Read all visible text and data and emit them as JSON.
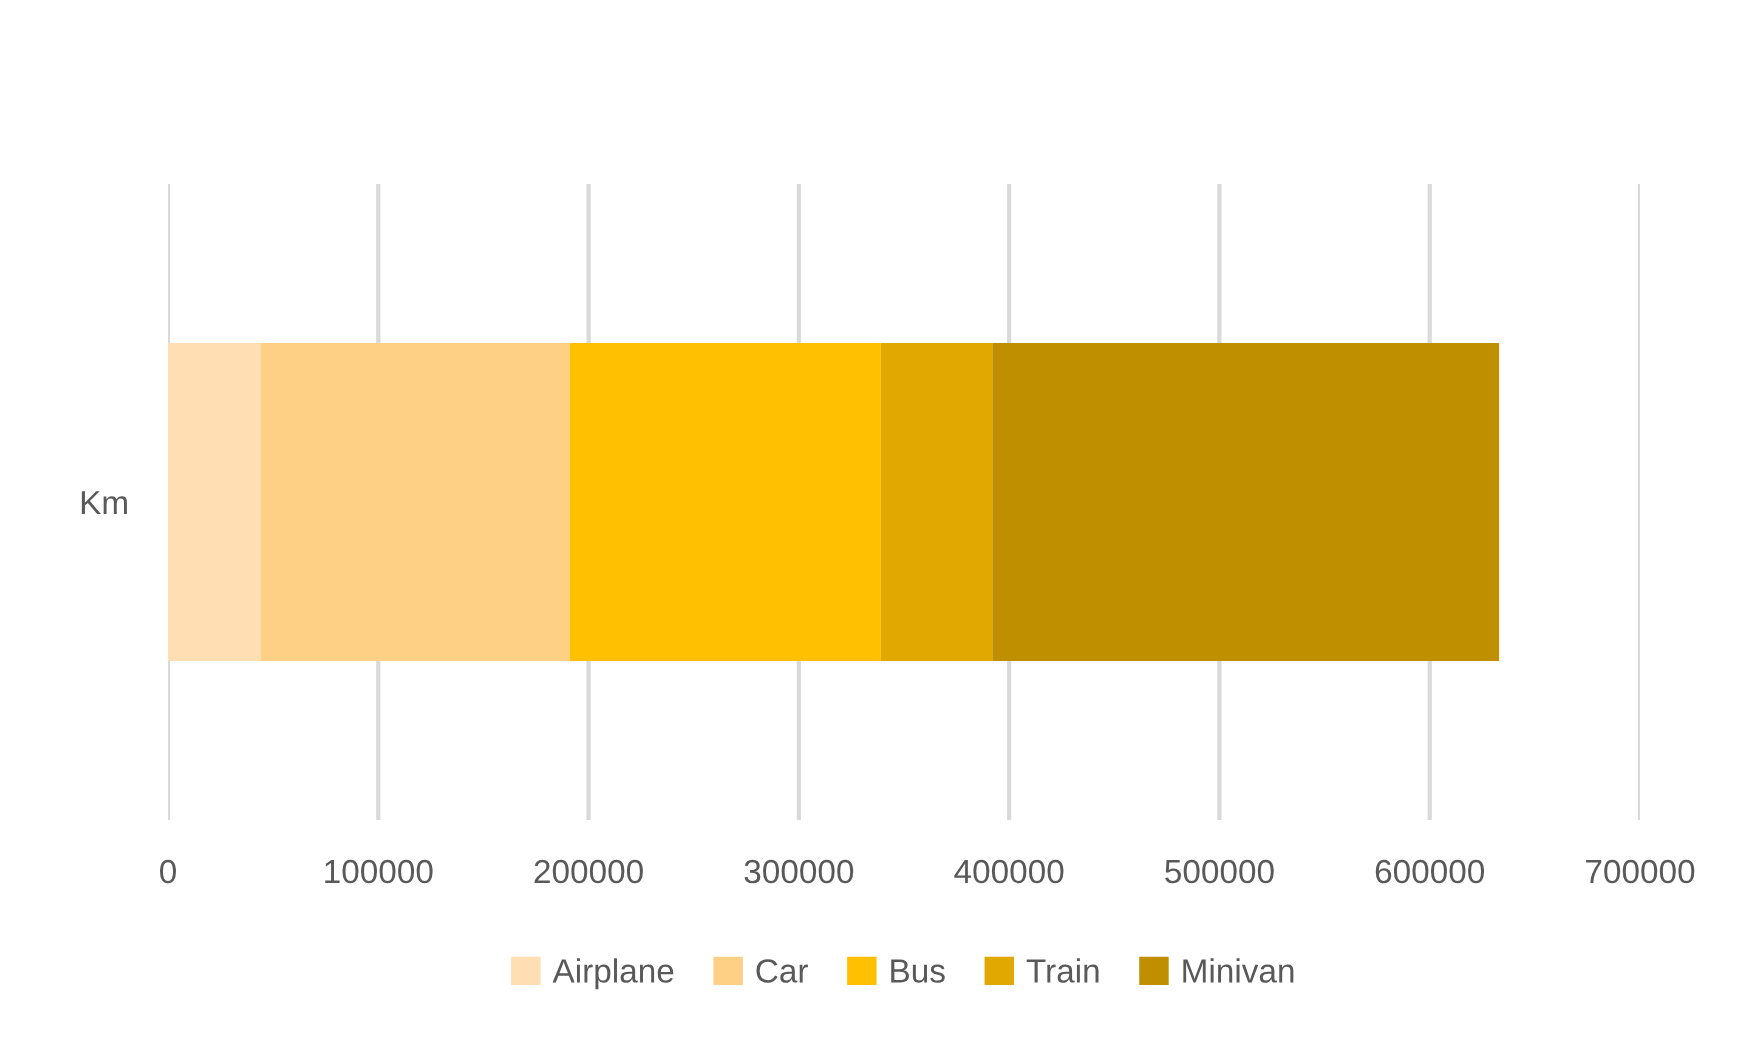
{
  "chart_data": {
    "type": "bar",
    "orientation": "horizontal",
    "stacked": true,
    "categories": [
      "Km"
    ],
    "series": [
      {
        "name": "Airplane",
        "color": "#fedeb2",
        "values": [
          44000
        ]
      },
      {
        "name": "Car",
        "color": "#fdd086",
        "values": [
          147000
        ]
      },
      {
        "name": "Bus",
        "color": "#fec000",
        "values": [
          148000
        ]
      },
      {
        "name": "Train",
        "color": "#e0a800",
        "values": [
          53000
        ]
      },
      {
        "name": "Minivan",
        "color": "#bf8f00",
        "values": [
          241000
        ]
      }
    ],
    "xlim": [
      0,
      700000
    ],
    "xticks": [
      0,
      100000,
      200000,
      300000,
      400000,
      500000,
      600000,
      700000
    ],
    "grid": "x",
    "legend": "bottom"
  }
}
